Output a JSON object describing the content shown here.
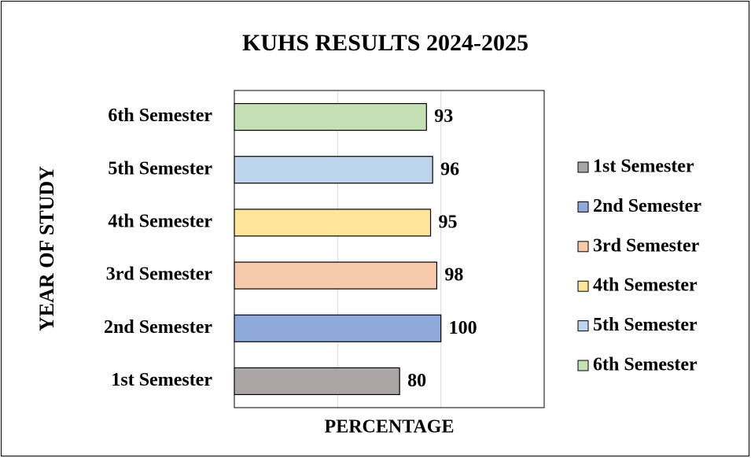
{
  "chart_data": {
    "type": "bar",
    "orientation": "horizontal",
    "title": "KUHS RESULTS 2024-2025",
    "xlabel": "PERCENTAGE",
    "ylabel": "YEAR OF STUDY",
    "categories": [
      "1st Semester",
      "2nd Semester",
      "3rd Semester",
      "4th Semester",
      "5th Semester",
      "6th Semester"
    ],
    "values": [
      80,
      100,
      98,
      95,
      96,
      93
    ],
    "colors": [
      "#aba6a6",
      "#8eaadb",
      "#f7caac",
      "#ffe598",
      "#bdd6ee",
      "#c5e0b3"
    ],
    "xlim": [
      0,
      150
    ],
    "xticks": [
      0,
      50,
      100,
      150
    ],
    "grid": true,
    "legend": "right"
  }
}
